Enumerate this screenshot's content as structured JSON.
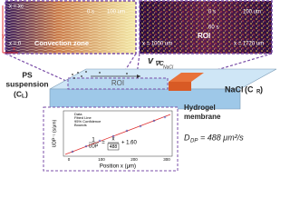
{
  "left_panel": {
    "marker": "x = xc",
    "time": "0 s",
    "scale": "100 um",
    "origin": "x = 0",
    "label": "Convection zone",
    "axis_y": "y",
    "axis_x": "x"
  },
  "right_panel": {
    "time_start": "0 s",
    "time_end": "60 s",
    "scale": "100 um",
    "start": "x = 1000 um",
    "label": "ROI",
    "end": "x = 1720 um"
  },
  "velocity": {
    "symbol": "v",
    "subscript": "∇C",
    "subsubscript": "NaCl"
  },
  "left_reservoir": {
    "line1": "PS",
    "line2": "suspension",
    "open": "(C",
    "sub": "L",
    "close": ")"
  },
  "right_reservoir": {
    "name": "NaCl",
    "open": "(C",
    "sub": "R",
    "close": ")"
  },
  "channel": {
    "roi": "ROI"
  },
  "membrane": {
    "line1": "Hydrogel",
    "line2": "membrane"
  },
  "result": {
    "symbol": "D",
    "sub": "DP",
    "value": "= 488 μm²/s"
  },
  "inset": {
    "legend": [
      "Data",
      "Fitted Line",
      "95% Confidence",
      "Bounds"
    ],
    "equation": {
      "lhs_num": "1",
      "lhs_den": "UDP",
      "eq": "=",
      "rhs_num": "x",
      "rhs_den": "488",
      "tail": "+ 1.60"
    },
    "x_label": "Position x (μm)",
    "y_label": "UDP⁻¹ (s/μm)",
    "x_ticks": [
      "0",
      "100",
      "200",
      "300"
    ]
  }
}
